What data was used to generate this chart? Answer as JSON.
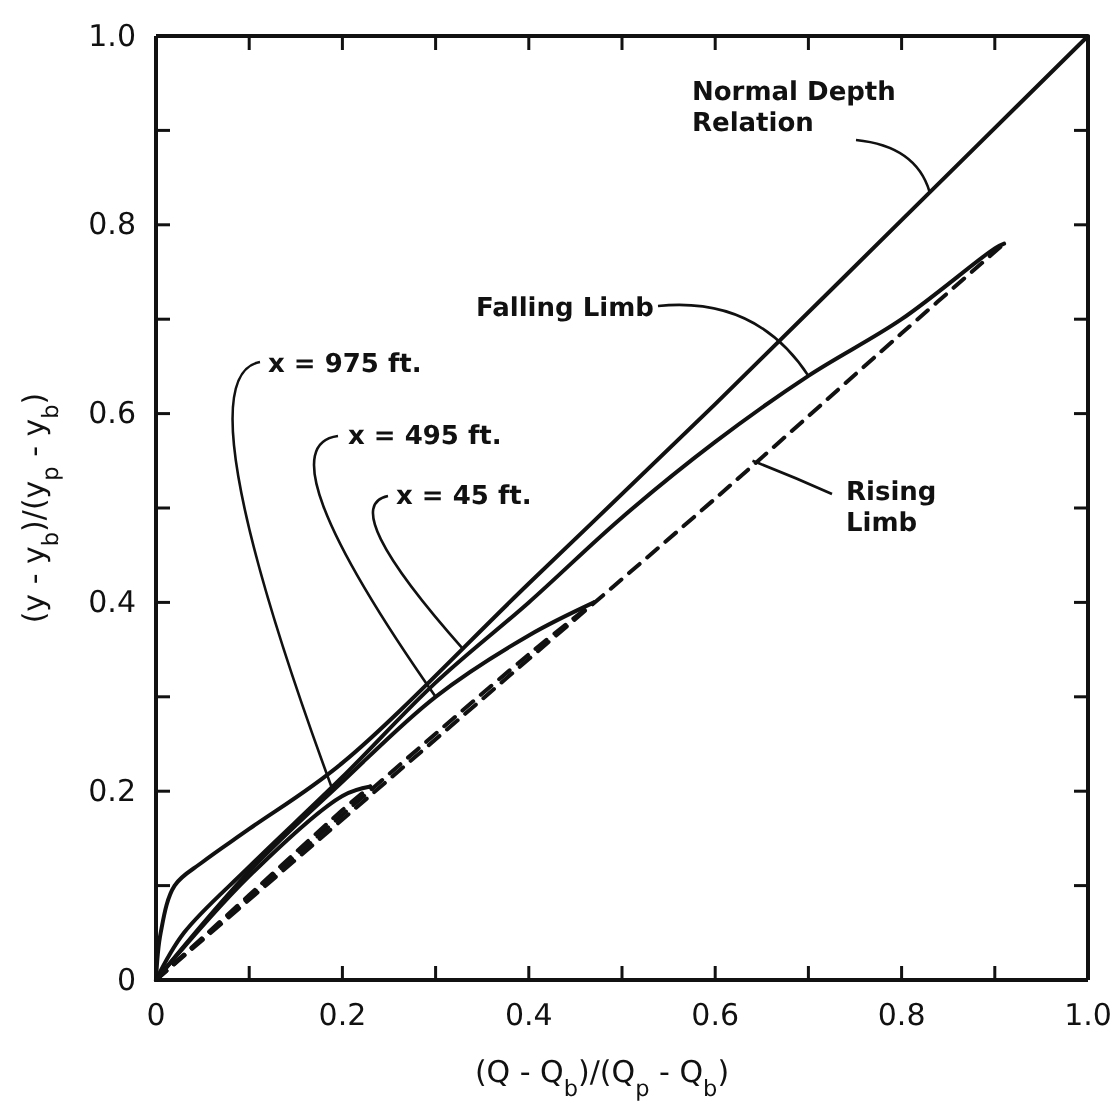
{
  "chart_data": {
    "type": "line",
    "xlabel": "(Q - Q$_{b}$)/(Q$_{p}$ - Q$_{b}$)",
    "ylabel": "(y - y$_{b}$)/(y$_{p}$ - y$_{b}$)",
    "xlim": [
      0,
      1.0
    ],
    "ylim": [
      0,
      1.0
    ],
    "xticks": [
      0,
      {
        "value": 0.1,
        "label": null
      },
      0.2,
      {
        "value": 0.3,
        "label": null
      },
      0.4,
      {
        "value": 0.5,
        "label": null
      },
      0.6,
      {
        "value": 0.7,
        "label": null
      },
      0.8,
      {
        "value": 0.9,
        "label": null
      },
      {
        "value": 1.0,
        "label": "1.0"
      }
    ],
    "yticks": [
      0,
      {
        "value": 0.1,
        "label": null
      },
      0.2,
      {
        "value": 0.3,
        "label": null
      },
      0.4,
      {
        "value": 0.5,
        "label": null
      },
      0.6,
      {
        "value": 0.7,
        "label": null
      },
      0.8,
      {
        "value": 0.9,
        "label": null
      },
      {
        "value": 1.0,
        "label": "1.0"
      }
    ],
    "grid": false,
    "marker": "none",
    "series": [
      {
        "color": "#111111",
        "line_style": "solid",
        "x": [
          0,
          0.005,
          0.02,
          0.05,
          0.1,
          0.2,
          0.4,
          0.6,
          0.8,
          1.0
        ],
        "values": [
          0,
          0.05,
          0.1,
          0.125,
          0.16,
          0.23,
          0.42,
          0.61,
          0.805,
          1.0
        ]
      },
      {
        "color": "#111111",
        "line_style": "dashed",
        "x": [
          0,
          0.2,
          0.4,
          0.6,
          0.8,
          0.91
        ],
        "values": [
          0,
          0.17,
          0.34,
          0.51,
          0.685,
          0.78
        ]
      },
      {
        "color": "#111111",
        "line_style": "solid",
        "x": [
          0.91,
          0.9,
          0.8,
          0.7,
          0.6,
          0.5,
          0.4,
          0.3,
          0.2,
          0.1,
          0.03,
          0
        ],
        "values": [
          0.78,
          0.775,
          0.7,
          0.64,
          0.57,
          0.49,
          0.4,
          0.315,
          0.215,
          0.12,
          0.05,
          0
        ]
      },
      {
        "color": "#111111",
        "line_style": "dashed",
        "x": [
          0,
          0.2,
          0.4,
          0.47
        ],
        "values": [
          0,
          0.175,
          0.345,
          0.4
        ]
      },
      {
        "color": "#111111",
        "line_style": "solid",
        "x": [
          0.47,
          0.4,
          0.3,
          0.2,
          0.1,
          0
        ],
        "values": [
          0.4,
          0.365,
          0.3,
          0.21,
          0.115,
          0
        ]
      },
      {
        "color": "#111111",
        "line_style": "dashed",
        "x": [
          0,
          0.1,
          0.2,
          0.23
        ],
        "values": [
          0,
          0.09,
          0.18,
          0.205
        ]
      },
      {
        "color": "#111111",
        "line_style": "solid",
        "x": [
          0.23,
          0.2,
          0.1,
          0
        ],
        "values": [
          0.205,
          0.195,
          0.11,
          0
        ]
      }
    ],
    "annotations": [
      {
        "text": "Normal Depth\nRelation",
        "x": 0.83,
        "y": 0.835
      },
      {
        "text": "Falling Limb",
        "x": 0.7,
        "y": 0.64
      },
      {
        "text": "Rising\nLimb",
        "x": 0.64,
        "y": 0.55
      },
      {
        "text": "x = 975 ft.",
        "x": 0.19,
        "y": 0.2
      },
      {
        "text": "x = 495 ft.",
        "x": 0.3,
        "y": 0.3
      },
      {
        "text": "x = 45 ft.",
        "x": 0.33,
        "y": 0.35
      }
    ]
  }
}
